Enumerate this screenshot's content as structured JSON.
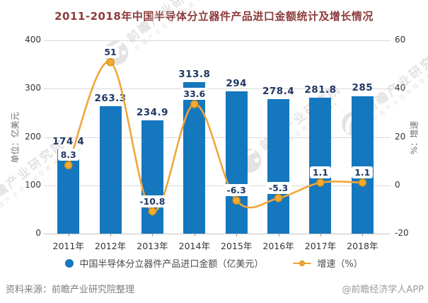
{
  "title": "2011-2018年中国半导体分立器件产品进口金额统计及增长情况",
  "chart_data": {
    "type": "bar+line combo",
    "categories": [
      "2011年",
      "2012年",
      "2013年",
      "2014年",
      "2015年",
      "2016年",
      "2017年",
      "2018年"
    ],
    "series": [
      {
        "name": "中国半导体分立器件产品进口金额（亿美元）",
        "type": "bar",
        "axis": "left",
        "color": "#1577BE",
        "values": [
          174.4,
          263.3,
          234.9,
          313.8,
          294,
          278.4,
          281.8,
          285
        ]
      },
      {
        "name": "增速（%）",
        "type": "line",
        "axis": "right",
        "color": "#F0A63A",
        "values": [
          8.3,
          51,
          -10.8,
          33.6,
          -6.3,
          -5.3,
          1.1,
          1.1
        ]
      }
    ],
    "left_axis": {
      "name": "单位：亿美元",
      "min": 0,
      "max": 400,
      "interval": 100
    },
    "right_axis": {
      "name": "%：增速",
      "min": -20,
      "max": 60,
      "interval": 20
    },
    "grid": true,
    "legend_position": "bottom",
    "colors": {
      "bar": "#1577BE",
      "line": "#F0A63A",
      "bar_label": "#1F3864",
      "title": "#8C3B3B"
    }
  },
  "footer": {
    "source": "资料来源：前瞻产业研究院整理",
    "credit": "@前瞻经济学人APP"
  },
  "watermark": {
    "brand": "前瞻产业研究院",
    "tagline": "中国产业咨询领导者"
  }
}
